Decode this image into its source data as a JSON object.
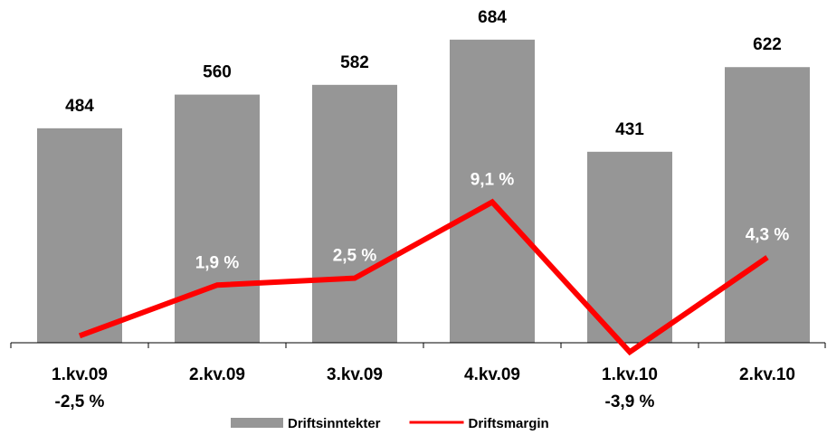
{
  "chart_data": {
    "type": "bar-line",
    "categories": [
      "1.kv.09",
      "2.kv.09",
      "3.kv.09",
      "4.kv.09",
      "1.kv.10",
      "2.kv.10"
    ],
    "series": [
      {
        "name": "Driftsinntekter",
        "type": "bar",
        "color": "#969696",
        "values": [
          484,
          560,
          582,
          684,
          431,
          622
        ]
      },
      {
        "name": "Driftsmargin",
        "type": "line",
        "axis": "y2",
        "color": "#ff0000",
        "values": [
          -2.5,
          1.9,
          2.5,
          9.1,
          -3.9,
          4.3
        ],
        "value_labels": [
          "-2,5 %",
          "1,9 %",
          "2,5 %",
          "9,1 %",
          "-3,9 %",
          "4,3 %"
        ]
      }
    ],
    "ylim": [
      0,
      700
    ],
    "y2lim": [
      -3.1,
      23.8
    ],
    "legend": "bottom"
  }
}
